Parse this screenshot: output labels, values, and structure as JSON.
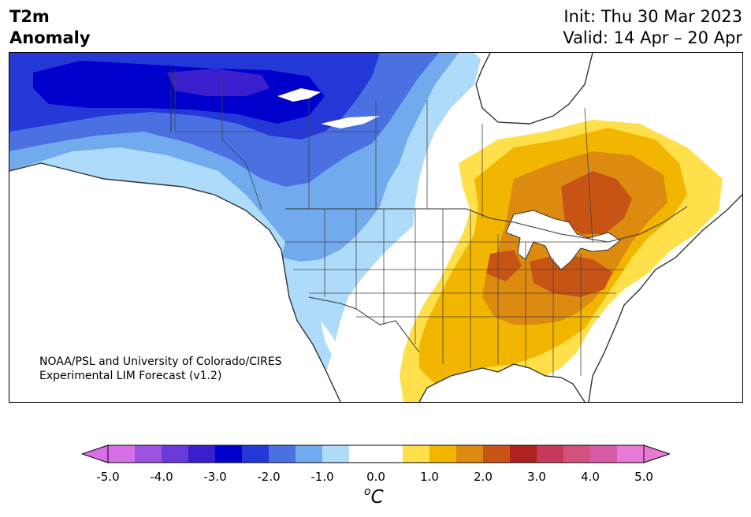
{
  "header": {
    "title_line1": "T2m",
    "title_line2": "Anomaly",
    "init": "Init: Thu 30 Mar 2023",
    "valid": "Valid: 14 Apr – 20 Apr"
  },
  "map": {
    "credit_line1": "NOAA/PSL and University of Colorado/CIRES",
    "credit_line2": "Experimental LIM Forecast (v1.2)",
    "anomaly_regions": [
      {
        "region": "Alaska / NW Canada",
        "level": "-3.0 to -3.5"
      },
      {
        "region": "Western Canada",
        "level": "-1.0 to -3.0"
      },
      {
        "region": "Northwestern US",
        "level": "-0.5 to -1.5"
      },
      {
        "region": "Great Plains / Southwest US",
        "level": "-0.5 to 0.5"
      },
      {
        "region": "Ontario / Quebec",
        "level": "0.5 to 2.5"
      },
      {
        "region": "Great Lakes / Ohio Valley",
        "level": "1.5 to 2.5"
      },
      {
        "region": "Southeast US / Texas",
        "level": "0.5 to 1.5"
      }
    ]
  },
  "colorbar": {
    "unit_base": "C",
    "unit_sup": "o",
    "tick_labels": [
      "-5.0",
      "-4.0",
      "-3.0",
      "-2.0",
      "-1.0",
      "0.0",
      "1.0",
      "2.0",
      "3.0",
      "4.0",
      "5.0"
    ],
    "colors": [
      "#d770e6",
      "#9b52e0",
      "#6a3ad8",
      "#3b1fcf",
      "#0000cc",
      "#2438d8",
      "#4a70e2",
      "#72aaee",
      "#addbf9",
      "#ffffff",
      "#ffffff",
      "#ffe04a",
      "#f2b600",
      "#dd8a10",
      "#c75414",
      "#ae2222",
      "#c43a58",
      "#d2527c",
      "#d65ca8",
      "#e87ad6"
    ],
    "extend_low": "#d770e6",
    "extend_high": "#e87ad6"
  }
}
